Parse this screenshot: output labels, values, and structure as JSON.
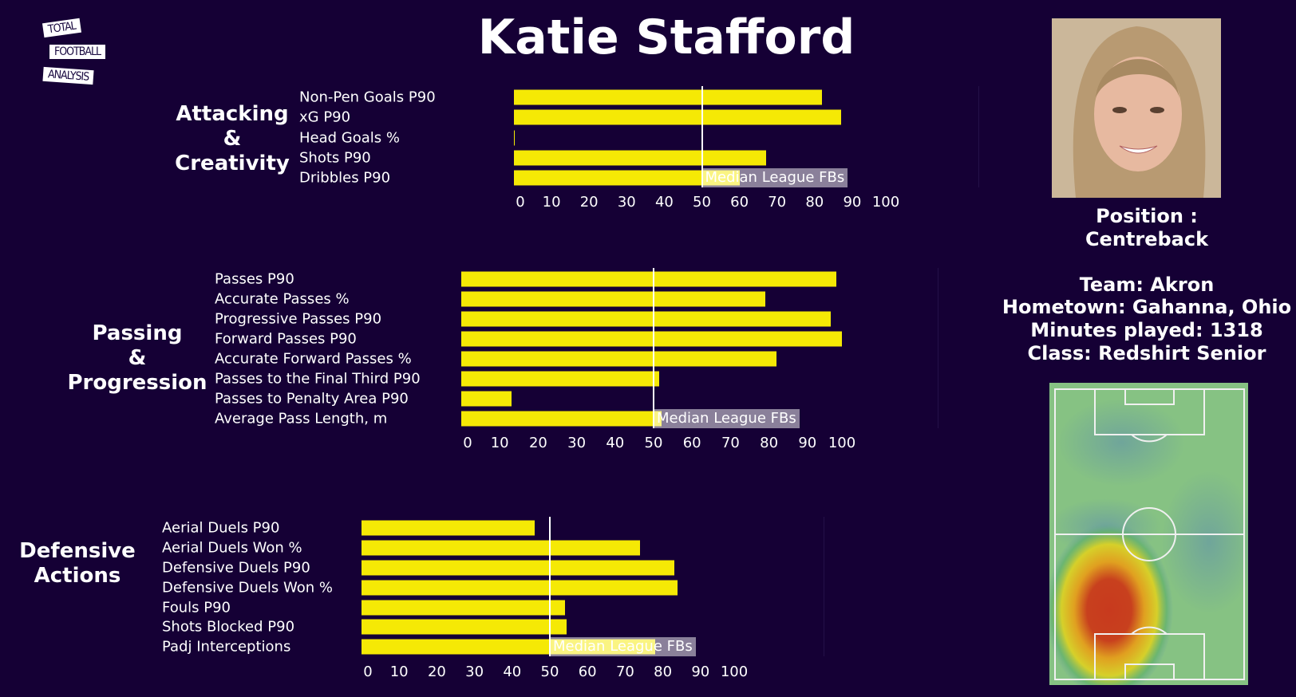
{
  "header": {
    "title": "Katie Stafford"
  },
  "logo": {
    "lines": [
      "TOTAL",
      "FOOTBALL",
      "ANALYSIS"
    ]
  },
  "info": {
    "position_label": "Position :",
    "position": "Centreback",
    "team": "Team: Akron",
    "hometown": "Hometown: Gahanna, Ohio",
    "minutes": "Minutes played: 1318",
    "class": "Class: Redshirt Senior"
  },
  "colors": {
    "background": "#150035",
    "bar": "#f5e905",
    "median_line": "#ffffff"
  },
  "chart_data": [
    {
      "type": "bar",
      "section_title": [
        "Attacking",
        "&",
        "Creativity"
      ],
      "categories": [
        "Non-Pen Goals P90",
        "xG P90",
        "Head Goals %",
        "Shots P90",
        "Dribbles P90"
      ],
      "values": [
        82,
        87,
        0.3,
        67,
        60
      ],
      "median": 50,
      "median_label": "Median League FBs",
      "xlim": [
        0,
        100
      ],
      "xticks": [
        "0",
        "10",
        "20",
        "30",
        "40",
        "50",
        "60",
        "70",
        "80",
        "90",
        "100"
      ]
    },
    {
      "type": "bar",
      "section_title": [
        "Passing",
        "&",
        "Progression"
      ],
      "categories": [
        "Passes P90",
        "Accurate Passes %",
        "Progressive Passes P90",
        "Forward Passes P90",
        "Accurate Forward Passes %",
        "Passes to the Final Third P90",
        "Passes to Penalty Area P90",
        "Average Pass Length, m"
      ],
      "values": [
        97.5,
        79,
        96,
        99,
        82,
        51.5,
        13,
        52
      ],
      "median": 50,
      "median_label": "Median League FBs",
      "xlim": [
        0,
        100
      ],
      "xticks": [
        "0",
        "10",
        "20",
        "30",
        "40",
        "50",
        "60",
        "70",
        "80",
        "90",
        "100"
      ]
    },
    {
      "type": "bar",
      "section_title": [
        "Defensive",
        "Actions"
      ],
      "categories": [
        "Aerial Duels P90",
        "Aerial Duels Won %",
        "Defensive Duels P90",
        "Defensive Duels Won %",
        "Fouls P90",
        "Shots Blocked P90",
        "Padj Interceptions"
      ],
      "values": [
        46,
        74,
        83,
        84,
        54,
        54.5,
        78
      ],
      "median": 50,
      "median_label": "Median League FBs",
      "xlim": [
        0,
        100
      ],
      "xticks": [
        "0",
        "10",
        "20",
        "30",
        "40",
        "50",
        "60",
        "70",
        "80",
        "90",
        "100"
      ]
    }
  ]
}
